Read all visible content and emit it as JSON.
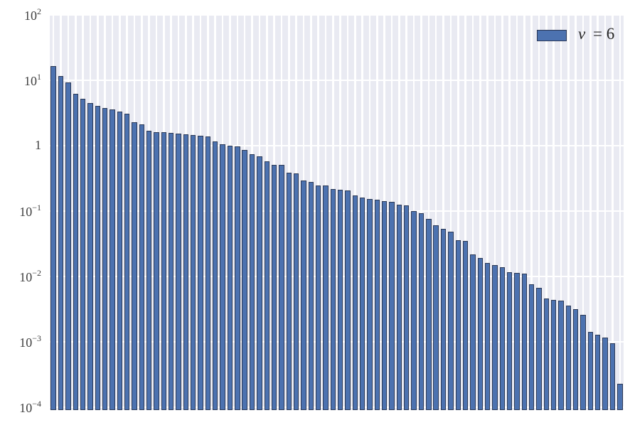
{
  "chart_data": {
    "type": "bar",
    "title": "",
    "xlabel": "",
    "ylabel": "",
    "yscale": "log",
    "ylim": [
      9.1e-05,
      100
    ],
    "grid": "on",
    "legend": {
      "position": "upper-right",
      "symbol": "ν",
      "rest": "= 6",
      "full_label": "ν = 6"
    },
    "yticks": [
      {
        "exp": 2,
        "base": "10",
        "sup": "2"
      },
      {
        "exp": 1,
        "base": "10",
        "sup": "1"
      },
      {
        "exp": 0,
        "base": "1",
        "sup": ""
      },
      {
        "exp": -1,
        "base": "10",
        "sup": "−1"
      },
      {
        "exp": -2,
        "base": "10",
        "sup": "−2"
      },
      {
        "exp": -3,
        "base": "10",
        "sup": "−3"
      },
      {
        "exp": -4,
        "base": "10",
        "sup": "−4"
      }
    ],
    "xticks": [],
    "values": [
      16.5,
      11.5,
      9.2,
      6.2,
      5.2,
      4.5,
      4.1,
      3.8,
      3.55,
      3.3,
      3.1,
      2.3,
      2.1,
      1.68,
      1.62,
      1.6,
      1.56,
      1.52,
      1.5,
      1.47,
      1.42,
      1.4,
      1.17,
      1.05,
      0.99,
      0.97,
      0.86,
      0.75,
      0.69,
      0.58,
      0.515,
      0.505,
      0.392,
      0.381,
      0.295,
      0.28,
      0.248,
      0.244,
      0.217,
      0.213,
      0.208,
      0.173,
      0.16,
      0.152,
      0.149,
      0.142,
      0.14,
      0.126,
      0.122,
      0.1,
      0.092,
      0.077,
      0.061,
      0.054,
      0.048,
      0.0357,
      0.0355,
      0.0216,
      0.0194,
      0.016,
      0.0151,
      0.014,
      0.0118,
      0.0115,
      0.0112,
      0.0076,
      0.0067,
      0.0046,
      0.0044,
      0.0043,
      0.0036,
      0.0032,
      0.0026,
      0.00142,
      0.0013,
      0.00118,
      0.00096,
      0.00023
    ],
    "colors": {
      "bar_fill": "#4c72b0",
      "bar_edge": "#2d3a56",
      "plot_background": "#e9eaf2",
      "grid": "#ffffff",
      "figure_background": "#ffffff",
      "tick_label": "#404040",
      "legend_text": "#262626"
    }
  }
}
